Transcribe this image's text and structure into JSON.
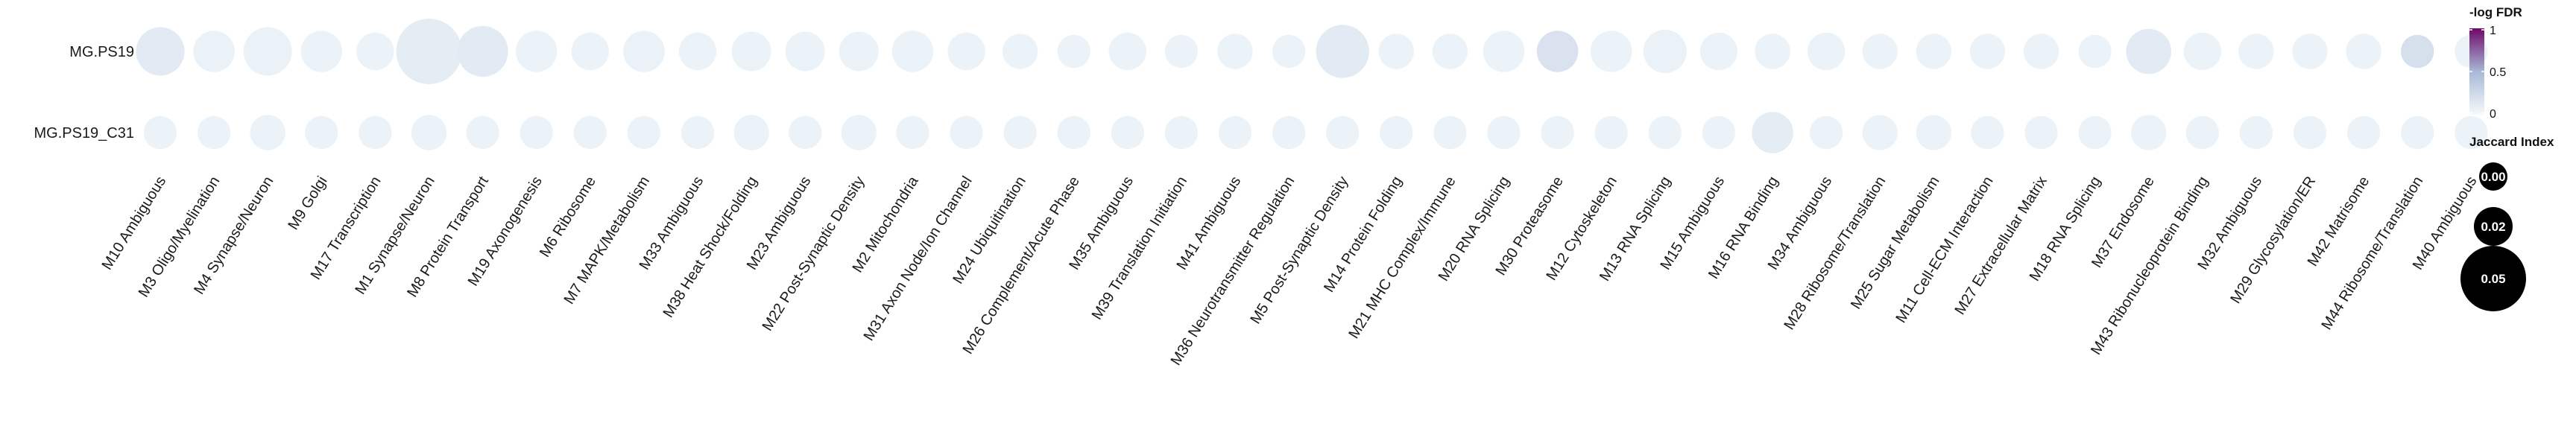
{
  "chart_data": {
    "type": "dot",
    "rows": [
      "MG.PS19",
      "MG.PS19_C31"
    ],
    "columns": [
      "M10 Ambiguous",
      "M3 Oligo/Myelination",
      "M4 Synapse/Neuron",
      "M9 Golgi",
      "M17 Transcription",
      "M1 Synapse/Neuron",
      "M8 Protein Transport",
      "M19 Axonogenesis",
      "M6 Ribosome",
      "M7 MAPK/Metabolism",
      "M33 Ambiguous",
      "M38 Heat Shock/Folding",
      "M23 Ambiguous",
      "M22 Post-Synaptic Density",
      "M2 Mitochondria",
      "M31 Axon Node/Ion Channel",
      "M24 Ubiquitination",
      "M26 Complement/Acute Phase",
      "M35 Ambiguous",
      "M39 Translation Initiation",
      "M41 Ambiguous",
      "M36 Neurotransmitter Regulation",
      "M5 Post-Synaptic Density",
      "M14 Protein Folding",
      "M21 MHC Complex/Immune",
      "M20 RNA Splicing",
      "M30 Proteasome",
      "M12 Cytoskeleton",
      "M13 RNA Splicing",
      "M15 Ambiguous",
      "M16 RNA Binding",
      "M34 Ambiguous",
      "M28 Ribosome/Translation",
      "M25 Sugar Metabolism",
      "M11 Cell-ECM Interaction",
      "M27 Extracellular Matrix",
      "M18 RNA Splicing",
      "M37 Endosome",
      "M43 Ribonucleoprotein Binding",
      "M32 Ambiguous",
      "M29 Glycosylation/ER",
      "M42 Matrisome",
      "M44 Ribosome/Translation",
      "M40 Ambiguous"
    ],
    "size_label": "Jaccard Index",
    "color_label": "-log FDR",
    "jaccard": [
      [
        0.03,
        0.022,
        0.03,
        0.022,
        0.018,
        0.055,
        0.033,
        0.022,
        0.018,
        0.022,
        0.018,
        0.02,
        0.02,
        0.02,
        0.022,
        0.018,
        0.016,
        0.014,
        0.018,
        0.014,
        0.016,
        0.014,
        0.036,
        0.016,
        0.016,
        0.022,
        0.022,
        0.022,
        0.024,
        0.018,
        0.016,
        0.018,
        0.016,
        0.016,
        0.016,
        0.016,
        0.014,
        0.026,
        0.018,
        0.016,
        0.016,
        0.016,
        0.014,
        0.014
      ],
      [
        0.014,
        0.014,
        0.016,
        0.014,
        0.014,
        0.016,
        0.014,
        0.014,
        0.014,
        0.014,
        0.014,
        0.016,
        0.014,
        0.016,
        0.014,
        0.014,
        0.014,
        0.014,
        0.014,
        0.014,
        0.014,
        0.014,
        0.014,
        0.014,
        0.014,
        0.014,
        0.014,
        0.014,
        0.014,
        0.014,
        0.022,
        0.014,
        0.016,
        0.016,
        0.014,
        0.014,
        0.014,
        0.016,
        0.014,
        0.014,
        0.014,
        0.014,
        0.014,
        0.014
      ]
    ],
    "neg_log_fdr": [
      [
        0.12,
        0.06,
        0.06,
        0.05,
        0.05,
        0.1,
        0.12,
        0.05,
        0.05,
        0.06,
        0.05,
        0.05,
        0.05,
        0.05,
        0.05,
        0.05,
        0.05,
        0.05,
        0.05,
        0.05,
        0.05,
        0.05,
        0.12,
        0.05,
        0.05,
        0.05,
        0.18,
        0.05,
        0.06,
        0.05,
        0.05,
        0.05,
        0.05,
        0.05,
        0.05,
        0.05,
        0.05,
        0.12,
        0.05,
        0.05,
        0.05,
        0.05,
        0.2,
        0.05
      ],
      [
        0.05,
        0.05,
        0.05,
        0.05,
        0.05,
        0.05,
        0.05,
        0.05,
        0.05,
        0.05,
        0.05,
        0.05,
        0.05,
        0.05,
        0.05,
        0.05,
        0.05,
        0.05,
        0.05,
        0.05,
        0.05,
        0.05,
        0.05,
        0.05,
        0.05,
        0.05,
        0.05,
        0.05,
        0.05,
        0.05,
        0.1,
        0.05,
        0.05,
        0.05,
        0.05,
        0.05,
        0.05,
        0.05,
        0.05,
        0.05,
        0.05,
        0.05,
        0.05,
        0.05
      ]
    ],
    "color_scale": {
      "low": "#f4fafc",
      "mid": "#a8b8d6",
      "high": "#6d0a6a",
      "ticks": [
        "0",
        "0.5",
        "1"
      ],
      "range": [
        0,
        1
      ]
    },
    "size_legend": {
      "values": [
        0.0,
        0.02,
        0.05
      ],
      "labels": [
        "0.00",
        "0.02",
        "0.05"
      ],
      "fill": "#000000"
    }
  }
}
